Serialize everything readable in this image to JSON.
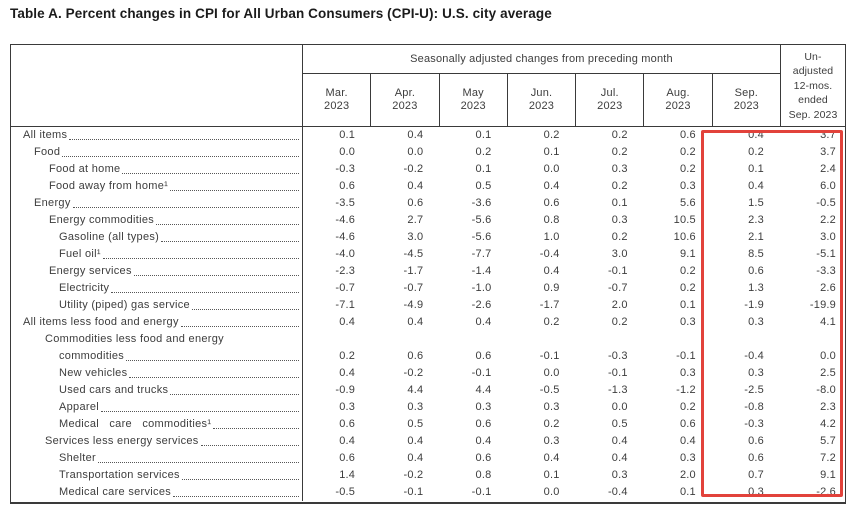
{
  "title": "Table A. Percent changes in CPI for All Urban Consumers (CPI-U): U.S. city average",
  "table": {
    "group_header": "Seasonally adjusted changes from preceding month",
    "months": [
      {
        "abbr": "Mar.",
        "year": "2023"
      },
      {
        "abbr": "Apr.",
        "year": "2023"
      },
      {
        "abbr": "May",
        "year": "2023"
      },
      {
        "abbr": "Jun.",
        "year": "2023"
      },
      {
        "abbr": "Jul.",
        "year": "2023"
      },
      {
        "abbr": "Aug.",
        "year": "2023"
      },
      {
        "abbr": "Sep.",
        "year": "2023"
      }
    ],
    "unadjusted_header_lines": [
      "Un-",
      "adjusted",
      "12-mos.",
      "ended",
      "Sep. 2023"
    ],
    "rows": [
      {
        "label": "All items",
        "indent": 0,
        "values": [
          "0.1",
          "0.4",
          "0.1",
          "0.2",
          "0.2",
          "0.6",
          "0.4",
          "3.7"
        ]
      },
      {
        "label": "Food",
        "indent": 1,
        "values": [
          "0.0",
          "0.0",
          "0.2",
          "0.1",
          "0.2",
          "0.2",
          "0.2",
          "3.7"
        ]
      },
      {
        "label": "Food at home",
        "indent": 3,
        "values": [
          "-0.3",
          "-0.2",
          "0.1",
          "0.0",
          "0.3",
          "0.2",
          "0.1",
          "2.4"
        ]
      },
      {
        "label": "Food away from home¹",
        "indent": 3,
        "values": [
          "0.6",
          "0.4",
          "0.5",
          "0.4",
          "0.2",
          "0.3",
          "0.4",
          "6.0"
        ]
      },
      {
        "label": "Energy",
        "indent": 1,
        "values": [
          "-3.5",
          "0.6",
          "-3.6",
          "0.6",
          "0.1",
          "5.6",
          "1.5",
          "-0.5"
        ]
      },
      {
        "label": "Energy commodities",
        "indent": 3,
        "values": [
          "-4.6",
          "2.7",
          "-5.6",
          "0.8",
          "0.3",
          "10.5",
          "2.3",
          "2.2"
        ]
      },
      {
        "label": "Gasoline (all types)",
        "indent": 4,
        "values": [
          "-4.6",
          "3.0",
          "-5.6",
          "1.0",
          "0.2",
          "10.6",
          "2.1",
          "3.0"
        ]
      },
      {
        "label": "Fuel oil¹",
        "indent": 4,
        "values": [
          "-4.0",
          "-4.5",
          "-7.7",
          "-0.4",
          "3.0",
          "9.1",
          "8.5",
          "-5.1"
        ]
      },
      {
        "label": "Energy services",
        "indent": 3,
        "values": [
          "-2.3",
          "-1.7",
          "-1.4",
          "0.4",
          "-0.1",
          "0.2",
          "0.6",
          "-3.3"
        ]
      },
      {
        "label": "Electricity",
        "indent": 4,
        "values": [
          "-0.7",
          "-0.7",
          "-1.0",
          "0.9",
          "-0.7",
          "0.2",
          "1.3",
          "2.6"
        ]
      },
      {
        "label": "Utility (piped) gas service",
        "indent": 4,
        "values": [
          "-7.1",
          "-4.9",
          "-2.6",
          "-1.7",
          "2.0",
          "0.1",
          "-1.9",
          "-19.9"
        ]
      },
      {
        "label": "All items less food and energy",
        "indent": 0,
        "values": [
          "0.4",
          "0.4",
          "0.4",
          "0.2",
          "0.2",
          "0.3",
          "0.3",
          "4.1"
        ]
      },
      {
        "label": "Commodities less food and energy\ncommodities",
        "indent": 2,
        "hang": true,
        "values": [
          "0.2",
          "0.6",
          "0.6",
          "-0.1",
          "-0.3",
          "-0.1",
          "-0.4",
          "0.0"
        ]
      },
      {
        "label": "New vehicles",
        "indent": 4,
        "values": [
          "0.4",
          "-0.2",
          "-0.1",
          "0.0",
          "-0.1",
          "0.3",
          "0.3",
          "2.5"
        ]
      },
      {
        "label": "Used cars and trucks",
        "indent": 4,
        "values": [
          "-0.9",
          "4.4",
          "4.4",
          "-0.5",
          "-1.3",
          "-1.2",
          "-2.5",
          "-8.0"
        ]
      },
      {
        "label": "Apparel",
        "indent": 4,
        "values": [
          "0.3",
          "0.3",
          "0.3",
          "0.3",
          "0.0",
          "0.2",
          "-0.8",
          "2.3"
        ]
      },
      {
        "label": "Medical care commodities¹",
        "indent": 4,
        "wide_spacing": true,
        "values": [
          "0.6",
          "0.5",
          "0.6",
          "0.2",
          "0.5",
          "0.6",
          "-0.3",
          "4.2"
        ]
      },
      {
        "label": "Services less energy services",
        "indent": 2,
        "values": [
          "0.4",
          "0.4",
          "0.4",
          "0.3",
          "0.4",
          "0.4",
          "0.6",
          "5.7"
        ]
      },
      {
        "label": "Shelter",
        "indent": 4,
        "values": [
          "0.6",
          "0.4",
          "0.6",
          "0.4",
          "0.4",
          "0.3",
          "0.6",
          "7.2"
        ]
      },
      {
        "label": "Transportation services",
        "indent": 4,
        "values": [
          "1.4",
          "-0.2",
          "0.8",
          "0.1",
          "0.3",
          "2.0",
          "0.7",
          "9.1"
        ]
      },
      {
        "label": "Medical care services",
        "indent": 4,
        "values": [
          "-0.5",
          "-0.1",
          "-0.1",
          "0.0",
          "-0.4",
          "0.1",
          "0.3",
          "-2.6"
        ]
      }
    ]
  },
  "highlight": {
    "color": "#e2423b"
  }
}
